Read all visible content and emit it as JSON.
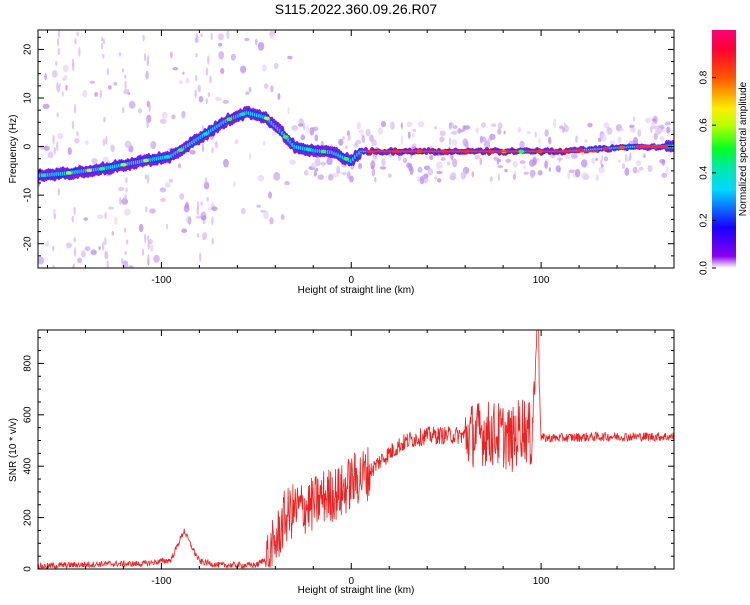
{
  "title": "S115.2022.360.09.26.R07",
  "chart_data": [
    {
      "type": "heatmap",
      "xlabel": "Height of straight line (km)",
      "ylabel": "Frequency (Hz)",
      "xlim": [
        -165,
        170
      ],
      "ylim": [
        -25,
        24
      ],
      "xticks": [
        -100,
        0,
        100
      ],
      "yticks": [
        -20,
        -10,
        0,
        10,
        20
      ],
      "colorbar": {
        "label": "Normalized spectral amplitude",
        "range": [
          0,
          1
        ],
        "ticks": [
          0.0,
          0.2,
          0.4,
          0.6,
          0.8
        ]
      },
      "ridge": {
        "x": [
          -165,
          -150,
          -130,
          -110,
          -95,
          -85,
          -75,
          -65,
          -55,
          -45,
          -38,
          -30,
          -20,
          -10,
          0,
          5,
          20,
          40,
          60,
          80,
          90,
          110,
          130,
          150,
          170
        ],
        "y": [
          -6,
          -5.5,
          -4.5,
          -3,
          -2,
          0.5,
          3,
          5.5,
          7,
          6,
          3.5,
          0,
          -0.8,
          -1.2,
          -3,
          -1,
          -1,
          -1,
          -1,
          -1,
          -1,
          -1,
          -0.5,
          0,
          0
        ]
      }
    },
    {
      "type": "line",
      "xlabel": "Height of straight line (km)",
      "ylabel": "SNR (10 * v/v)",
      "xlim": [
        -165,
        170
      ],
      "ylim": [
        0,
        930
      ],
      "xticks": [
        -100,
        0,
        100
      ],
      "yticks": [
        0,
        200,
        400,
        600,
        800
      ],
      "series": [
        {
          "color": "#ee2020",
          "x": [
            -165,
            -150,
            -130,
            -110,
            -95,
            -88,
            -85,
            -80,
            -70,
            -60,
            -50,
            -45,
            -40,
            -35,
            -30,
            -25,
            -20,
            -15,
            -10,
            -5,
            0,
            5,
            10,
            15,
            20,
            25,
            30,
            40,
            50,
            60,
            70,
            80,
            85,
            90,
            95,
            98,
            100,
            110,
            130,
            150,
            170
          ],
          "y": [
            10,
            15,
            20,
            20,
            35,
            150,
            100,
            30,
            15,
            15,
            15,
            40,
            100,
            200,
            230,
            240,
            250,
            280,
            290,
            300,
            340,
            360,
            380,
            420,
            450,
            480,
            500,
            520,
            520,
            520,
            530,
            520,
            500,
            560,
            510,
            930,
            510,
            510,
            515,
            515,
            515
          ]
        }
      ]
    }
  ]
}
